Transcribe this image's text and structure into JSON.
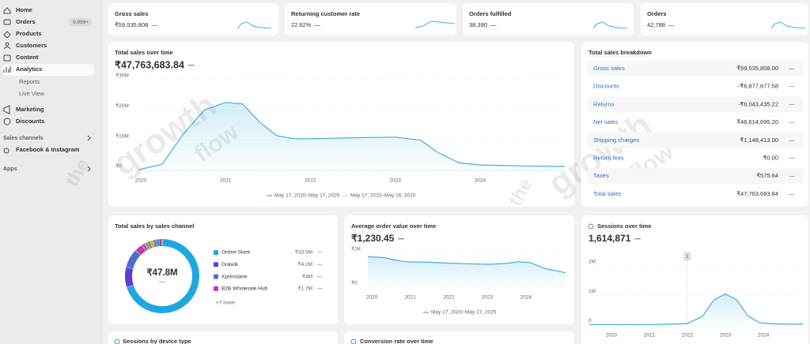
{
  "dash": "—",
  "sidebar": {
    "nav": [
      "Home",
      "Orders",
      "Products",
      "Customers",
      "Content",
      "Analytics"
    ],
    "orders_badge": "9,999+",
    "sub": [
      "Reports",
      "Live View"
    ],
    "nav2": [
      "Marketing",
      "Discounts"
    ],
    "sales_channels": "Sales channels",
    "facebook": "Facebook & Instagram",
    "apps": "Apps"
  },
  "watermark": {
    "the": "the",
    "growth": "growth",
    "flow": "flow"
  },
  "kpis": [
    {
      "title": "Gross sales",
      "value": "₹59,535,808"
    },
    {
      "title": "Returning customer rate",
      "value": "22.62%"
    },
    {
      "title": "Orders fulfilled",
      "value": "38,390"
    },
    {
      "title": "Orders",
      "value": "42,788"
    }
  ],
  "total_sales": {
    "title": "Total sales over time",
    "value": "₹47,763,683.84",
    "chart": {
      "xlim": [
        2019.97,
        2025.0
      ],
      "ylim": [
        0,
        30000000
      ],
      "yticks": [
        {
          "value": 0,
          "label": "₹0"
        },
        {
          "value": 10000000,
          "label": "₹10M"
        },
        {
          "value": 20000000,
          "label": "₹20M"
        },
        {
          "value": 30000000,
          "label": "₹30M"
        }
      ],
      "xticks": [
        2020,
        2021,
        2022,
        2023,
        2024
      ],
      "x": [
        2019.97,
        2020.25,
        2020.5,
        2020.75,
        2021.0,
        2021.2,
        2021.4,
        2021.6,
        2021.8,
        2022.0,
        2022.5,
        2023.0,
        2023.3,
        2023.5,
        2023.75,
        2024.0,
        2024.5,
        2025.0
      ],
      "series": [
        {
          "name": "May 17, 2020–May 17, 2025",
          "color": "#3fb0dc",
          "values": [
            200000,
            2000000,
            12000000,
            20000000,
            22500000,
            22000000,
            16000000,
            11500000,
            10500000,
            10500000,
            10800000,
            11000000,
            10000000,
            6000000,
            2500000,
            1800000,
            1500000,
            1300000
          ]
        },
        {
          "name": "May 17, 2015–May 16, 2020",
          "color": "#a9d8ee",
          "values": [
            0,
            0,
            0,
            0,
            0,
            0,
            0,
            0,
            0,
            0,
            0,
            0,
            0,
            0,
            0,
            0,
            0,
            0
          ]
        }
      ]
    }
  },
  "breakdown": {
    "title": "Total sales breakdown",
    "rows": [
      {
        "label": "Gross sales",
        "value": "₹59,535,808.00"
      },
      {
        "label": "Discounts",
        "value": "-₹6,877,677.58"
      },
      {
        "label": "Returns",
        "value": "-₹6,043,435.22"
      },
      {
        "label": "Net sales",
        "value": "₹46,614,695.20"
      },
      {
        "label": "Shipping charges",
        "value": "₹1,148,413.00"
      },
      {
        "label": "Return fees",
        "value": "₹0.00"
      },
      {
        "label": "Taxes",
        "value": "₹575.64"
      },
      {
        "label": "Total sales",
        "value": "₹47,763,683.84"
      }
    ]
  },
  "channels": {
    "title": "Total sales by sales channel",
    "total": {
      "value": 47.8,
      "label": "₹47.8M"
    },
    "more": "+7 more",
    "items": [
      {
        "name": "Online Store",
        "value": 33.5,
        "label": "₹33.5M",
        "color": "#1fa8e0"
      },
      {
        "name": "Gokwik",
        "value": 4.2,
        "label": "₹4.2M",
        "color": "#5b3fd6"
      },
      {
        "name": "Xpresslane",
        "value": 4,
        "label": "₹4M",
        "color": "#4a6fd0"
      },
      {
        "name": "B2B Wholesale Hub",
        "value": 1.7,
        "label": "₹1.7M",
        "color": "#c13aa8"
      }
    ]
  },
  "aov": {
    "title": "Average order value over time",
    "value": "₹1,230.45",
    "chart": {
      "xlim": [
        2019.9,
        2025.03
      ],
      "ylim": [
        0,
        2000
      ],
      "yticks": [
        {
          "value": 0,
          "label": "₹0"
        },
        {
          "value": 2000,
          "label": "₹2K"
        }
      ],
      "xticks": [
        2020,
        2021,
        2022,
        2023,
        2024
      ],
      "x": [
        2019.9,
        2020.3,
        2020.6,
        2020.9,
        2021.5,
        2022.0,
        2022.5,
        2023.0,
        2023.5,
        2023.8,
        2024.1,
        2024.5,
        2025.03
      ],
      "series": [
        {
          "name": "May 17, 2020–May 17, 2025",
          "color": "#3fb0dc",
          "values": [
            1800.0,
            1750,
            1600,
            1500,
            1470,
            1420,
            1380,
            1350,
            1400,
            1500,
            1450,
            1100,
            850
          ]
        }
      ]
    }
  },
  "sessions": {
    "title": "Sessions over time",
    "value": "1,614,871",
    "annotation": "1",
    "chart": {
      "xlim": [
        2019.42,
        2025.04
      ],
      "ylim": [
        0,
        2000000
      ],
      "yticks": [
        0,
        {
          "value": 1000000,
          "label": "1M"
        },
        {
          "value": 2000000,
          "label": "2M"
        }
      ],
      "xticks": [
        2020,
        2021,
        2022,
        2023,
        2024
      ],
      "annotation_x": 2022.0,
      "x": [
        2019.42,
        2020,
        2021,
        2021.5,
        2022,
        2022.4,
        2022.7,
        2023,
        2023.3,
        2023.6,
        2023.9,
        2024.3,
        2025.04
      ],
      "series": [
        {
          "name": "Sessions",
          "color": "#3fb0dc",
          "values": [
            20000,
            20000,
            20000,
            30000,
            50000,
            300000,
            850000,
            1050000,
            850000,
            300000,
            80000,
            40000,
            30000
          ]
        }
      ]
    }
  },
  "device": {
    "title": "Sessions by device type"
  },
  "conversion": {
    "title": "Conversion rate over time"
  }
}
